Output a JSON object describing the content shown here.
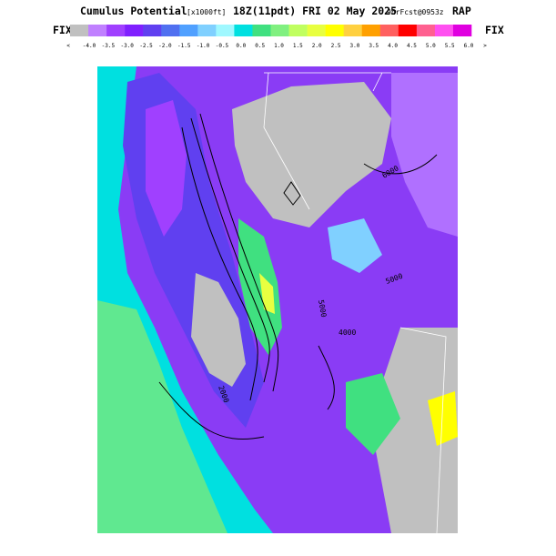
{
  "header": {
    "title": "Cumulus Potential",
    "units": "[x1000ft]",
    "valid": "18Z(11pdt) FRI 02 May 2025",
    "forecast": "9hrFcst@0953z",
    "model": "RAP"
  },
  "colorbar": {
    "left_label": "FIX",
    "right_label": "FIX",
    "below": "<",
    "above": ">",
    "colors": [
      "#c0c0c0",
      "#c080ff",
      "#a040ff",
      "#8020ff",
      "#6040f0",
      "#5070f0",
      "#50a0ff",
      "#80d0ff",
      "#a0f8ff",
      "#00e0e0",
      "#40e080",
      "#80f080",
      "#c0ff60",
      "#e8ff40",
      "#ffff00",
      "#ffd040",
      "#ffa000",
      "#ff6060",
      "#ff0000",
      "#ff6090",
      "#ff50f0",
      "#e000e0"
    ],
    "labels": [
      "-4.0",
      "-3.5",
      "-3.0",
      "-2.5",
      "-2.0",
      "-1.5",
      "-1.0",
      "-0.5",
      "0.0",
      "0.5",
      "1.0",
      "1.5",
      "2.0",
      "2.5",
      "3.0",
      "3.5",
      "4.0",
      "4.5",
      "5.0",
      "5.5",
      "6.0"
    ]
  },
  "map": {
    "contour_labels": [
      "6000",
      "5000",
      "5000",
      "4000",
      "2000"
    ]
  }
}
